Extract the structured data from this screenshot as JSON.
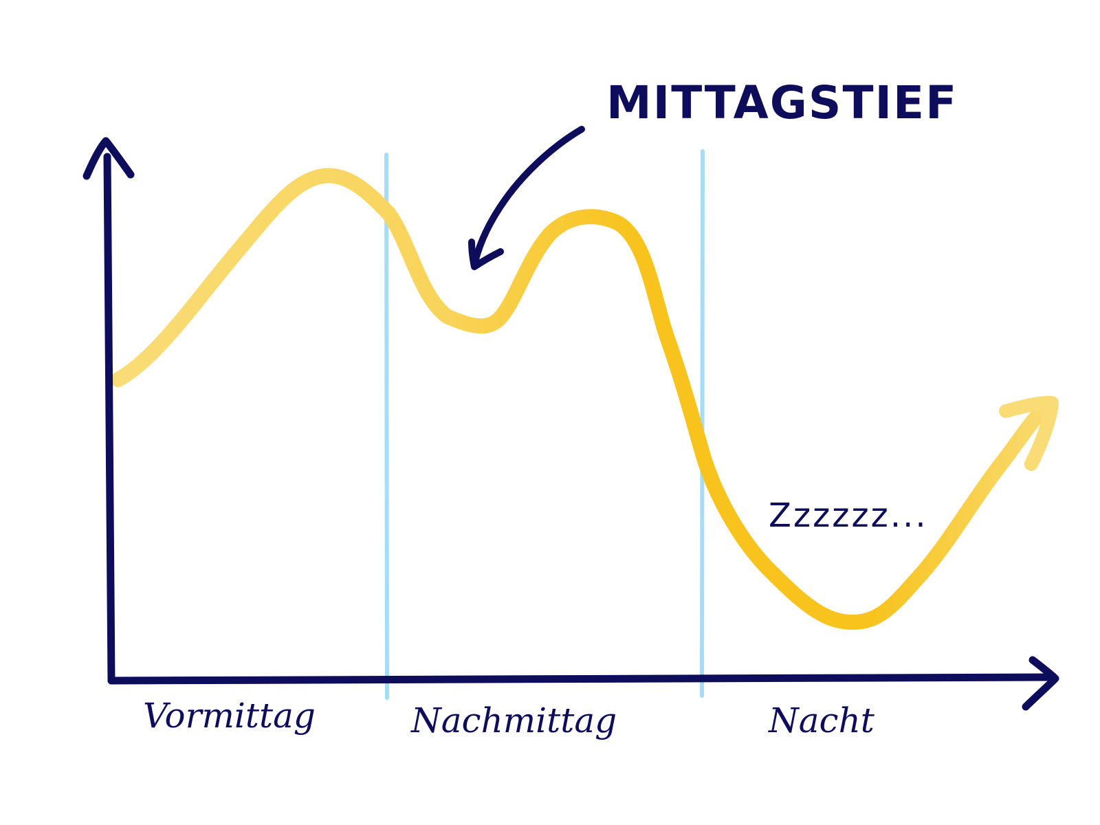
{
  "annotation": {
    "title": "MITTAGSTIEF",
    "sleep": "Zzzzzz..."
  },
  "regions": [
    "Vormittag",
    "Nachmittag",
    "Nacht"
  ],
  "colors": {
    "ink": "#0d0d5c",
    "curve": "#f7c31c",
    "curve_light": "#f9dc76",
    "divider": "#a6dcf5",
    "background": "#ffffff"
  }
}
